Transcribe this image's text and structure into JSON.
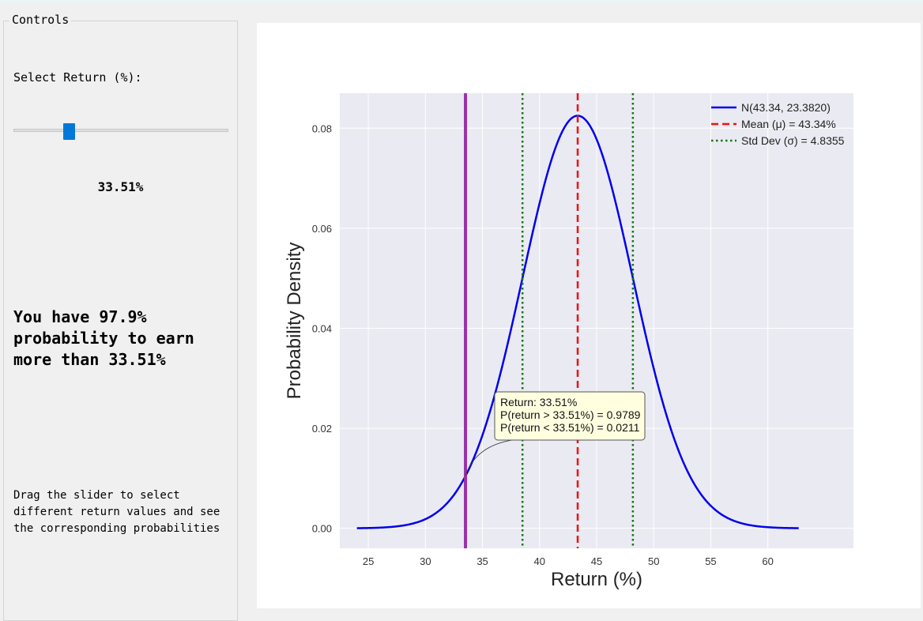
{
  "controls": {
    "group_title": "Controls",
    "select_label": "Select Return (%):",
    "slider_value": 33.51,
    "slider_min": 24,
    "slider_max": 62.7,
    "slider_value_text": "33.51%",
    "probability_text": "You have 97.9% probability to earn more than 33.51%",
    "help_text": "Drag the slider to select different return values and see the corresponding probabilities"
  },
  "colors": {
    "curve": "#0000ee",
    "mean_line": "#ee1111",
    "std_lines": "#117711",
    "selected_line": "#9933aa",
    "plot_bg": "#eaeaf2",
    "slider_handle": "#0078d7"
  },
  "chart_data": {
    "type": "line",
    "xlabel": "Return (%)",
    "ylabel": "Probability Density",
    "xlim": [
      22.5,
      67.5
    ],
    "ylim": [
      -0.004,
      0.087
    ],
    "xticks": [
      25,
      30,
      35,
      40,
      45,
      50,
      55,
      60
    ],
    "yticks": [
      0.0,
      0.02,
      0.04,
      0.06,
      0.08
    ],
    "ytick_labels": [
      "0.00",
      "0.02",
      "0.04",
      "0.06",
      "0.08"
    ],
    "grid": true,
    "legend_position": "upper-right",
    "distribution": {
      "mu": 43.34,
      "sigma": 4.8355,
      "x_start": 24.0,
      "x_end": 62.7
    },
    "mean_line_x": 43.34,
    "std_lines_x": [
      38.5045,
      48.1755
    ],
    "selected_x": 33.51,
    "series": [
      {
        "name": "N(43.34, 23.3820)",
        "style": "solid"
      },
      {
        "name": "Mean (μ) = 43.34%",
        "style": "dashed"
      },
      {
        "name": "Std Dev (σ) = 4.8355",
        "style": "dotted"
      }
    ],
    "annotation": {
      "lines": [
        "Return: 33.51%",
        "P(return > 33.51%) = 0.9789",
        "P(return < 33.51%) = 0.0211"
      ]
    }
  }
}
